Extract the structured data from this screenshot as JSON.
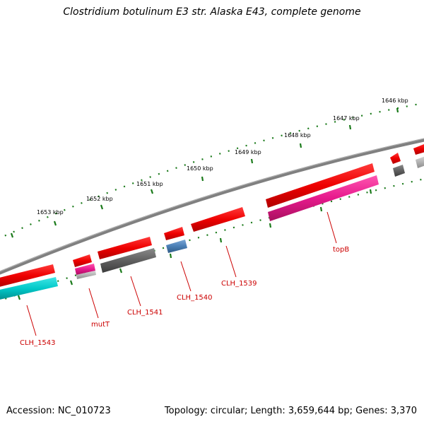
{
  "header": {
    "title": "Clostridium botulinum E3 str. Alaska E43, complete genome"
  },
  "footer": {
    "accession": "Accession: NC_010723",
    "topology": "Topology: circular; Length: 3,659,644 bp; Genes: 3,370"
  },
  "colors": {
    "backbone": "#808080",
    "tick": "#1a7a1a",
    "gene_red": "#ee0000",
    "gene_cyan": "#00c8c8",
    "gene_magenta": "#e6198c",
    "gene_gray": "#606060",
    "gene_blue": "#4a7fb5",
    "gene_lightgray": "#b4b4b4",
    "label": "#cc0000"
  },
  "scale_labels": [
    "1646 kbp",
    "1647 kbp",
    "1648 kbp",
    "1649 kbp",
    "1650 kbp",
    "1651 kbp",
    "1652 kbp",
    "1653 kbp"
  ],
  "gene_labels": [
    "topB",
    "CLH_1539",
    "CLH_1540",
    "CLH_1541",
    "mutT",
    "CLH_1543"
  ]
}
